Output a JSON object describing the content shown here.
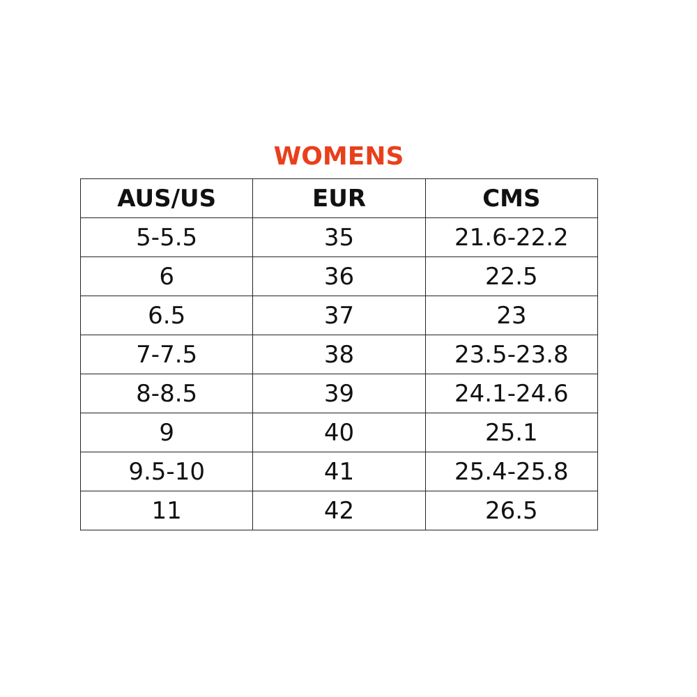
{
  "title": "WOMENS",
  "title_color": "#e8401c",
  "headers": [
    "AUS/US",
    "EUR",
    "CMS"
  ],
  "rows": [
    [
      "5-5.5",
      "35",
      "21.6-22.2"
    ],
    [
      "6",
      "36",
      "22.5"
    ],
    [
      "6.5",
      "37",
      "23"
    ],
    [
      "7-7.5",
      "38",
      "23.5-23.8"
    ],
    [
      "8-8.5",
      "39",
      "24.1-24.6"
    ],
    [
      "9",
      "40",
      "25.1"
    ],
    [
      "9.5-10",
      "41",
      "25.4-25.8"
    ],
    [
      "11",
      "42",
      "26.5"
    ]
  ]
}
